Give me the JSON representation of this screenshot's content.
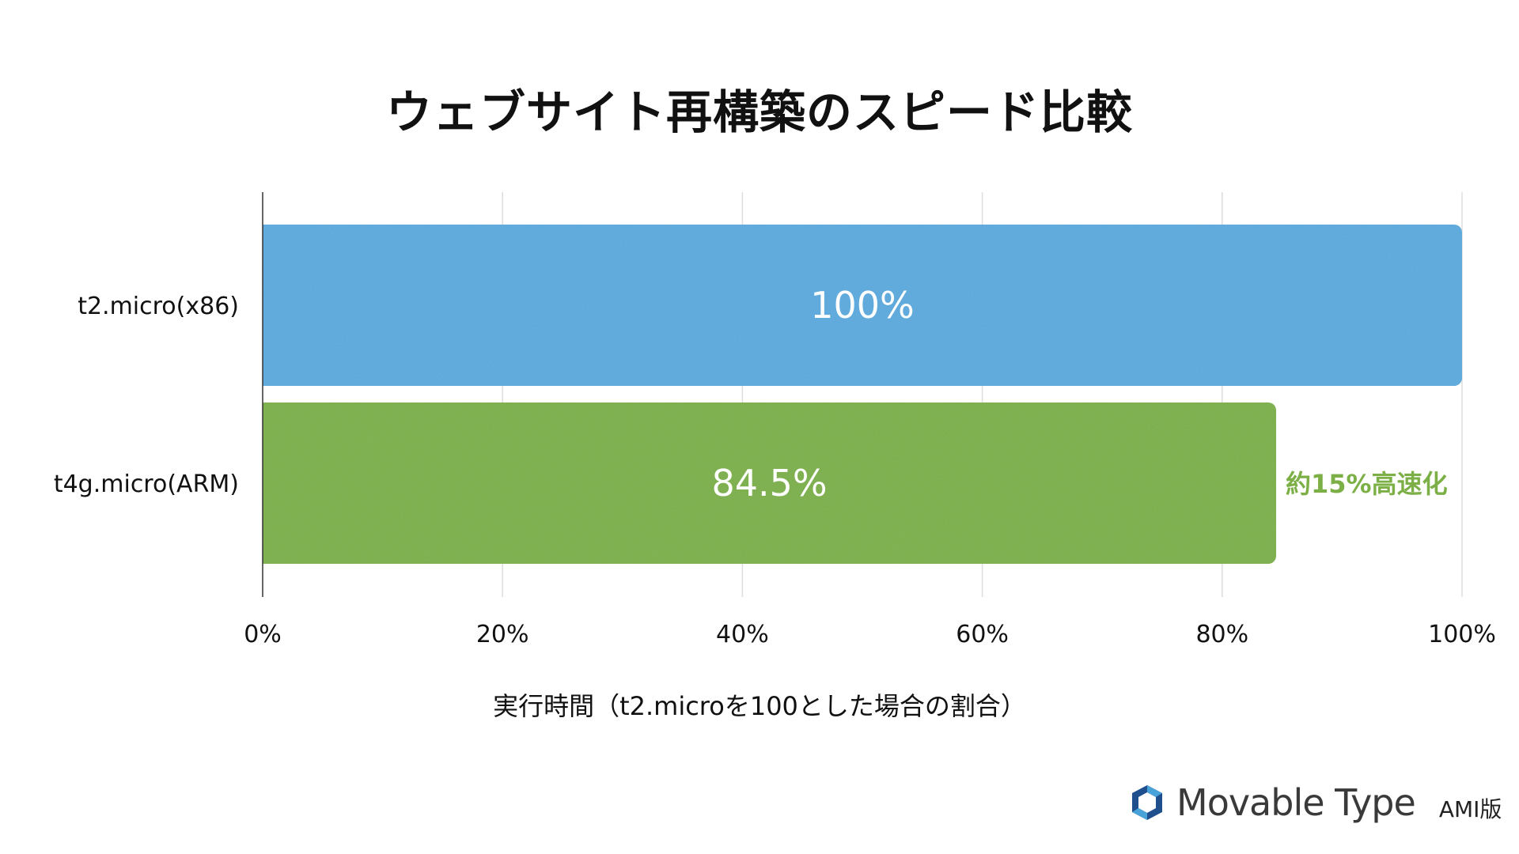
{
  "title": "ウェブサイト再構築のスピード比較",
  "chart_data": {
    "type": "bar",
    "orientation": "horizontal",
    "categories": [
      "t2.micro(x86)",
      "t4g.micro(ARM)"
    ],
    "values": [
      100,
      84.5
    ],
    "value_labels": [
      "100%",
      "84.5%"
    ],
    "colors": [
      "#5aaade",
      "#7cb046"
    ],
    "xlabel": "実行時間（t2.microを100とした場合の割合）",
    "ylabel": "",
    "xlim": [
      0,
      100
    ],
    "xticks": [
      "0%",
      "20%",
      "40%",
      "60%",
      "80%",
      "100%"
    ],
    "grid": true,
    "annotation": {
      "text": "約15%高速化",
      "category": "t4g.micro(ARM)",
      "color": "#7cb046"
    }
  },
  "logo": {
    "brand": "Movable Type",
    "edition": "AMI版",
    "icon": "movable-type-logo-icon",
    "colors": [
      "#1f4f8c",
      "#4aa3d8"
    ]
  }
}
